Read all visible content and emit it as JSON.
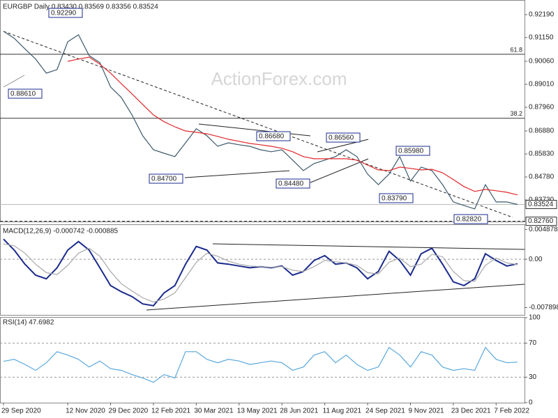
{
  "watermark": "ActionForex.com",
  "chart_data": [
    {
      "type": "line",
      "title": "EURGBP Daily 0.83430 0.83569 0.83356 0.83524",
      "ylim": [
        0.82745,
        0.92858
      ],
      "yticks": [
        {
          "value": 0.8373,
          "label": "0.83730"
        },
        {
          "value": 0.8478,
          "label": "0.84780"
        },
        {
          "value": 0.8583,
          "label": "0.85830"
        },
        {
          "value": 0.8688,
          "label": "0.86880"
        },
        {
          "value": 0.8796,
          "label": "0.87960"
        },
        {
          "value": 0.8901,
          "label": "0.89010"
        },
        {
          "value": 0.9006,
          "label": "0.90060"
        },
        {
          "value": 0.9115,
          "label": "0.91150"
        },
        {
          "value": 0.9219,
          "label": "0.92190"
        }
      ],
      "series": [
        {
          "color": "#3d5a6c",
          "values": [
            0.9143,
            0.9111,
            0.9063,
            0.9016,
            0.8952,
            0.8968,
            0.9095,
            0.9127,
            0.9032,
            0.9,
            0.8889,
            0.8841,
            0.8761,
            0.8666,
            0.8602,
            0.8586,
            0.8571,
            0.8634,
            0.8698,
            0.8666,
            0.8618,
            0.8634,
            0.8625,
            0.8618,
            0.8602,
            0.8593,
            0.8602,
            0.8555,
            0.8507,
            0.8539,
            0.8555,
            0.8571,
            0.8602,
            0.8571,
            0.8491,
            0.8443,
            0.8491,
            0.8571,
            0.8459,
            0.8523,
            0.8507,
            0.8443,
            0.8364,
            0.8348,
            0.8332,
            0.8443,
            0.8364,
            0.8364,
            0.83524
          ]
        },
        {
          "color": "#e0282c",
          "values": [
            null,
            null,
            null,
            null,
            null,
            null,
            0.9006,
            0.9016,
            0.9025,
            0.8993,
            0.8952,
            0.8904,
            0.8857,
            0.8809,
            0.8761,
            0.873,
            0.8707,
            0.8688,
            0.8682,
            0.8675,
            0.8663,
            0.865,
            0.8641,
            0.8631,
            0.8625,
            0.8618,
            0.8609,
            0.8593,
            0.8571,
            0.8561,
            0.8561,
            0.8561,
            0.8561,
            0.8555,
            0.8532,
            0.851,
            0.8507,
            0.8523,
            0.8517,
            0.851,
            0.8513,
            0.8497,
            0.8466,
            0.8434,
            0.8412,
            0.8421,
            0.8415,
            0.8408,
            0.8396
          ]
        }
      ],
      "fib_levels": [
        {
          "label": "61.8",
          "value": 0.9038
        },
        {
          "label": "38.2",
          "value": 0.8746
        }
      ],
      "price_markers": [
        {
          "label": "0.83524",
          "value": 0.83524
        },
        {
          "label": "0.82760",
          "value": 0.8276
        }
      ],
      "callouts": [
        "0.92290",
        "0.88610",
        "0.84700",
        "0.86680",
        "0.84480",
        "0.86560",
        "0.85980",
        "0.83790",
        "0.82820"
      ]
    },
    {
      "type": "line",
      "title": "MACD(12,26,9) -0.000742 -0.000885",
      "ylim": [
        -0.0091,
        0.0056
      ],
      "yticks": [
        -0.007898,
        {
          "value": 0,
          "label": "0.00"
        },
        0.004878
      ],
      "series": [
        {
          "color": "#1a2a8c",
          "values": [
            0.0033,
            0.0015,
            -0.0008,
            -0.0026,
            -0.0032,
            -0.0014,
            0.0015,
            0.0029,
            0.0015,
            -0.0014,
            -0.0043,
            -0.0053,
            -0.0061,
            -0.0073,
            -0.0076,
            -0.0055,
            -0.0043,
            -0.0008,
            0.0021,
            0.0015,
            -0.0006,
            -0.0008,
            -0.0011,
            -0.0014,
            -0.0012,
            -0.0014,
            -0.0011,
            -0.0026,
            -0.002,
            -0.0002,
            0.0006,
            -0.0008,
            -0.0006,
            -0.0014,
            -0.0032,
            -0.002,
            0.0013,
            -0.0002,
            -0.0026,
            0.0009,
            0.0018,
            -0.0008,
            -0.0037,
            -0.0043,
            -0.0032,
            0.0009,
            -0.0002,
            -0.0011,
            -0.000742
          ]
        },
        {
          "color": "#a8a8a8",
          "values": [
            0.0025,
            0.0022,
            0.001,
            -0.0008,
            -0.0022,
            -0.0025,
            -0.001,
            0.001,
            0.0018,
            0.0005,
            -0.002,
            -0.004,
            -0.0052,
            -0.0063,
            -0.007,
            -0.0065,
            -0.0055,
            -0.003,
            -0.0005,
            0.001,
            0.0005,
            -0.0003,
            -0.0008,
            -0.0011,
            -0.0012,
            -0.0013,
            -0.0012,
            -0.0018,
            -0.002,
            -0.0012,
            -0.0002,
            -0.0004,
            -0.0006,
            -0.001,
            -0.0022,
            -0.0024,
            -0.0005,
            0.0002,
            -0.0012,
            -0.0008,
            0.0008,
            0.0004,
            -0.002,
            -0.0035,
            -0.0036,
            -0.001,
            0.0002,
            -0.0006,
            -0.000885
          ]
        }
      ]
    },
    {
      "type": "line",
      "title": "RSI(14) 47.6982",
      "ylim": [
        0,
        100
      ],
      "yticks": [
        0,
        30,
        70,
        100
      ],
      "categories": [
        "29 Sep 2020",
        null,
        null,
        null,
        null,
        null,
        "12 Nov 2020",
        null,
        null,
        null,
        "29 Dec 2020",
        null,
        null,
        null,
        "12 Feb 2021",
        null,
        null,
        null,
        "30 Mar 2021",
        null,
        null,
        null,
        "13 May 2021",
        null,
        null,
        null,
        "28 Jun 2021",
        null,
        null,
        null,
        "11 Aug 2021",
        null,
        null,
        null,
        "24 Sep 2021",
        null,
        null,
        null,
        "9 Nov 2021",
        null,
        null,
        null,
        "23 Dec 2021",
        null,
        null,
        null,
        "7 Feb 2022",
        null,
        null
      ],
      "series": [
        {
          "color": "#5aa8dc",
          "values": [
            48.6,
            51,
            45,
            38,
            47,
            60,
            56,
            51,
            42,
            49,
            40,
            38,
            33,
            29,
            24,
            33,
            29,
            60,
            60,
            51,
            47,
            51,
            49,
            45,
            47,
            49,
            47,
            38,
            42,
            56,
            60,
            47,
            56,
            45,
            38,
            42,
            65,
            56,
            42,
            60,
            56,
            42,
            38,
            40,
            38,
            65,
            51,
            47,
            47.6982
          ]
        }
      ]
    }
  ]
}
